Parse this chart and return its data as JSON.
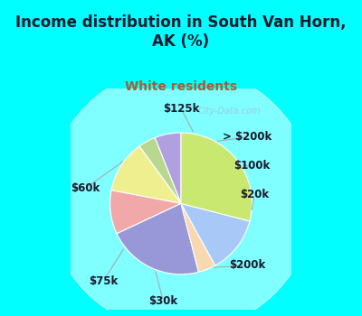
{
  "title": "Income distribution in South Van Horn,\nAK (%)",
  "subtitle": "White residents",
  "title_color": "#1a1a2e",
  "subtitle_color": "#b05a2f",
  "background_cyan": "#00ffff",
  "background_chart": "#d6ede3",
  "watermark": "City-Data.com",
  "labels": [
    "$125k",
    "> $200k",
    "$100k",
    "$20k",
    "$200k",
    "$30k",
    "$75k",
    "$60k"
  ],
  "values": [
    6,
    4,
    12,
    10,
    22,
    4,
    13,
    29
  ],
  "colors": [
    "#b0a0e0",
    "#b8d890",
    "#f0ef90",
    "#f0a8a8",
    "#9898d8",
    "#f8d8b0",
    "#a8c8f8",
    "#c8e870"
  ],
  "startangle": 90
}
